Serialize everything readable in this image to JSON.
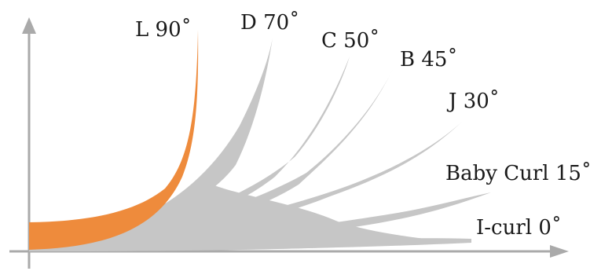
{
  "diagram": {
    "colors": {
      "axis": "#aaaaaa",
      "curl_fill": "#c6c6c6",
      "highlight_fill": "#ee8b3c",
      "text": "#1a1a1a"
    },
    "curls": [
      {
        "id": "l",
        "label": "L 90˚",
        "angle_deg": 90,
        "highlighted": true
      },
      {
        "id": "d",
        "label": "D 70˚",
        "angle_deg": 70,
        "highlighted": false
      },
      {
        "id": "c",
        "label": "C 50˚",
        "angle_deg": 50,
        "highlighted": false
      },
      {
        "id": "b",
        "label": "B 45˚",
        "angle_deg": 45,
        "highlighted": false
      },
      {
        "id": "j",
        "label": "J 30˚",
        "angle_deg": 30,
        "highlighted": false
      },
      {
        "id": "baby",
        "label": "Baby Curl  15˚",
        "angle_deg": 15,
        "highlighted": false
      },
      {
        "id": "i",
        "label": "I-curl  0˚",
        "angle_deg": 0,
        "highlighted": false
      }
    ]
  }
}
